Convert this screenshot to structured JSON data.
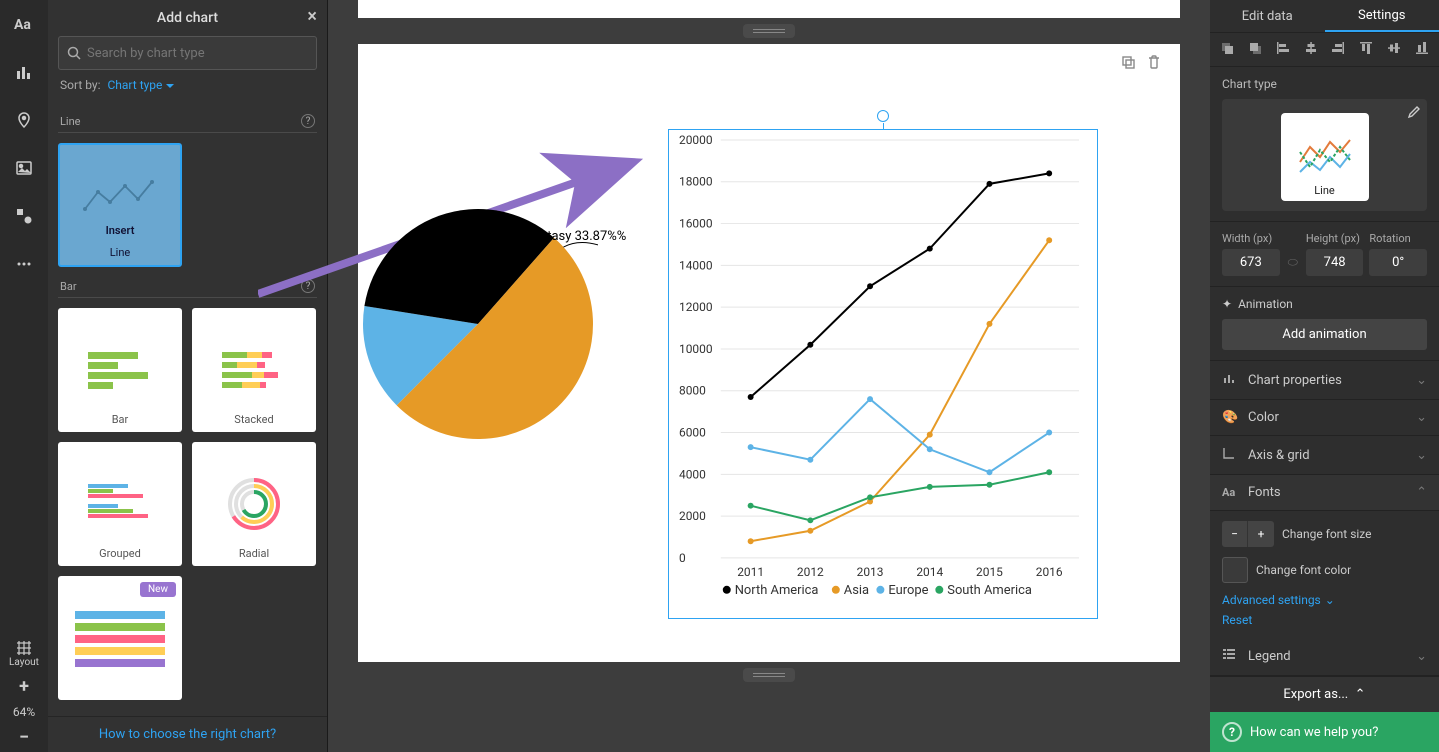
{
  "left_rail": {
    "tools": [
      "text-icon",
      "chart-icon",
      "map-icon",
      "image-icon",
      "shapes-icon",
      "more-icon"
    ]
  },
  "bottom_tools": {
    "layout_label": "Layout",
    "zoom_pct": "64%"
  },
  "panel": {
    "title": "Add chart",
    "search_placeholder": "Search by chart type",
    "sort_label": "Sort by:",
    "sort_value": "Chart type",
    "categories": [
      {
        "name": "Line",
        "tiles": [
          {
            "label": "Line",
            "selected": true,
            "insert": "Insert"
          }
        ]
      },
      {
        "name": "Bar",
        "tiles": [
          {
            "label": "Bar"
          },
          {
            "label": "Stacked"
          },
          {
            "label": "Grouped"
          },
          {
            "label": "Radial"
          },
          {
            "label": "",
            "new": true
          }
        ]
      }
    ],
    "footer_link": "How to choose the right chart?",
    "new_badge": "New"
  },
  "canvas": {
    "pie": {
      "label": "Fantasy 33.87%%",
      "slices": [
        {
          "color": "#5db3e6",
          "pct": 15
        },
        {
          "color": "#000000",
          "pct": 34
        },
        {
          "color": "#e69a26",
          "pct": 51
        }
      ],
      "label_angle_deg": -42
    },
    "arrow_color": "#8c6fc5",
    "line_chart": {
      "type": "line",
      "x_categories": [
        "2011",
        "2012",
        "2013",
        "2014",
        "2015",
        "2016"
      ],
      "ylim": [
        0,
        20000
      ],
      "ytick_step": 2000,
      "grid_color": "#e5e5e5",
      "background": "#ffffff",
      "axis_font_size": 12,
      "series": [
        {
          "name": "North America",
          "color": "#000000",
          "values": [
            7700,
            10200,
            13000,
            14800,
            17900,
            18400
          ]
        },
        {
          "name": "Asia",
          "color": "#e69a26",
          "values": [
            800,
            1300,
            2700,
            5900,
            11200,
            15200
          ]
        },
        {
          "name": "Europe",
          "color": "#5db3e6",
          "values": [
            5300,
            4700,
            7600,
            5200,
            4100,
            6000
          ]
        },
        {
          "name": "South America",
          "color": "#2aa562",
          "values": [
            2500,
            1800,
            2900,
            3400,
            3500,
            4100
          ]
        }
      ]
    }
  },
  "right": {
    "tabs": {
      "edit": "Edit data",
      "settings": "Settings"
    },
    "chart_type_label": "Chart type",
    "chart_type_value": "Line",
    "dims": {
      "width_label": "Width (px)",
      "width_val": "673",
      "height_label": "Height (px)",
      "height_val": "748",
      "rotation_label": "Rotation",
      "rotation_val": "0°"
    },
    "animation_label": "Animation",
    "add_animation": "Add animation",
    "acc": {
      "chart_props": "Chart properties",
      "color": "Color",
      "axis_grid": "Axis & grid",
      "fonts": "Fonts",
      "legend": "Legend"
    },
    "fonts": {
      "change_size": "Change font size",
      "change_color": "Change font color",
      "advanced": "Advanced settings",
      "reset": "Reset"
    },
    "export": "Export as...",
    "help": "How can we help you?"
  }
}
